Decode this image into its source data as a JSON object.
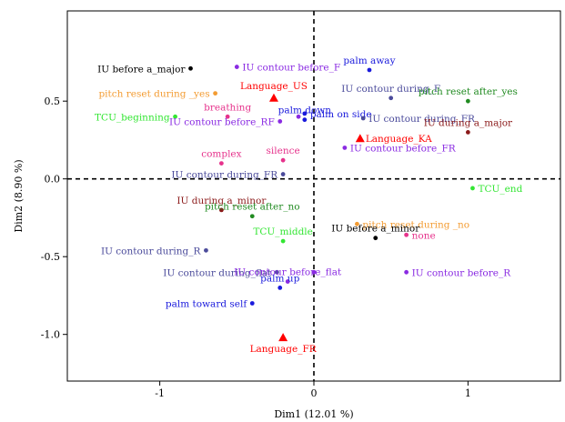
{
  "chart_data": {
    "type": "scatter",
    "xlabel": "Dim1 (12.01 %)",
    "ylabel": "Dim2 (8.90 %)",
    "xlim": [
      -1.6,
      1.6
    ],
    "ylim": [
      -1.3,
      1.08
    ],
    "x_ticks": [
      "-1",
      "0",
      "1"
    ],
    "x_tick_values": [
      -1,
      0,
      1
    ],
    "y_ticks": [
      "-1.0",
      "-0.5",
      "0.0",
      "0.5"
    ],
    "y_tick_values": [
      -1.0,
      -0.5,
      0.0,
      0.5
    ],
    "grid": false,
    "reference_lines": [
      0,
      0
    ],
    "points": [
      {
        "label": "IU before a_major",
        "x": -0.8,
        "y": 0.71,
        "color": "#000000",
        "marker": "dot",
        "anchor": "end"
      },
      {
        "label": "IU contour before_F",
        "x": -0.5,
        "y": 0.72,
        "color": "#8a2be2",
        "marker": "dot",
        "anchor": "start"
      },
      {
        "label": "palm away",
        "x": 0.36,
        "y": 0.7,
        "color": "#1a1adc",
        "marker": "dot",
        "anchor": "middle"
      },
      {
        "label": "pitch reset during _yes",
        "x": -0.64,
        "y": 0.55,
        "color": "#f39c33",
        "marker": "dot",
        "anchor": "end"
      },
      {
        "label": "Language_US",
        "x": -0.26,
        "y": 0.52,
        "color": "#ff0000",
        "marker": "triangle",
        "anchor": "middle"
      },
      {
        "label": "IU contour during_F",
        "x": 0.5,
        "y": 0.52,
        "color": "#4b4b9b",
        "marker": "dot",
        "anchor": "middle"
      },
      {
        "label": "pitch reset after_yes",
        "x": 1.0,
        "y": 0.5,
        "color": "#228b22",
        "marker": "dot",
        "anchor": "middle"
      },
      {
        "label": "TCU_beginning",
        "x": -0.9,
        "y": 0.4,
        "color": "#33e633",
        "marker": "dot",
        "anchor": "end"
      },
      {
        "label": "breathing",
        "x": -0.56,
        "y": 0.4,
        "color": "#e6338c",
        "marker": "dot",
        "anchor": "middle"
      },
      {
        "label": "palm on side",
        "x": -0.06,
        "y": 0.42,
        "color": "#1a1adc",
        "marker": "dot",
        "anchor": "start"
      },
      {
        "label": "",
        "x": -0.1,
        "y": 0.4,
        "color": "#8a2be2",
        "marker": "dot",
        "anchor": "middle"
      },
      {
        "label": "palm down",
        "x": -0.06,
        "y": 0.38,
        "color": "#1a1adc",
        "marker": "dot",
        "anchor": "middle"
      },
      {
        "label": "IU contour during_FR",
        "x": 0.32,
        "y": 0.39,
        "color": "#4b4b9b",
        "marker": "dot",
        "anchor": "start"
      },
      {
        "label": "IU contour before_RF",
        "x": -0.22,
        "y": 0.37,
        "color": "#8a2be2",
        "marker": "dot",
        "anchor": "end"
      },
      {
        "label": "IU during a_major",
        "x": 1.0,
        "y": 0.3,
        "color": "#8b1a1a",
        "marker": "dot",
        "anchor": "middle"
      },
      {
        "label": "Language_KA",
        "x": 0.3,
        "y": 0.26,
        "color": "#ff0000",
        "marker": "triangle",
        "anchor": "start"
      },
      {
        "label": "IU contour before_FR",
        "x": 0.2,
        "y": 0.2,
        "color": "#8a2be2",
        "marker": "dot",
        "anchor": "start"
      },
      {
        "label": "complex",
        "x": -0.6,
        "y": 0.1,
        "color": "#e6338c",
        "marker": "dot",
        "anchor": "middle"
      },
      {
        "label": "silence",
        "x": -0.2,
        "y": 0.12,
        "color": "#e6338c",
        "marker": "dot",
        "anchor": "middle"
      },
      {
        "label": "IU contour during_FR",
        "x": -0.2,
        "y": 0.03,
        "color": "#4b4b9b",
        "marker": "dot",
        "anchor": "end"
      },
      {
        "label": "TCU_end",
        "x": 1.03,
        "y": -0.06,
        "color": "#33e633",
        "marker": "dot",
        "anchor": "start"
      },
      {
        "label": "IU during a_minor",
        "x": -0.6,
        "y": -0.2,
        "color": "#8b1a1a",
        "marker": "dot",
        "anchor": "middle"
      },
      {
        "label": "pitch reset after_no",
        "x": -0.4,
        "y": -0.24,
        "color": "#228b22",
        "marker": "dot",
        "anchor": "middle"
      },
      {
        "label": "pitch reset during _no",
        "x": 0.28,
        "y": -0.29,
        "color": "#f39c33",
        "marker": "dot",
        "anchor": "start"
      },
      {
        "label": "none",
        "x": 0.6,
        "y": -0.36,
        "color": "#e6338c",
        "marker": "dot",
        "anchor": "start"
      },
      {
        "label": "TCU_middle",
        "x": -0.2,
        "y": -0.4,
        "color": "#33e633",
        "marker": "dot",
        "anchor": "middle"
      },
      {
        "label": "IU before a_minor",
        "x": 0.4,
        "y": -0.38,
        "color": "#000000",
        "marker": "dot",
        "anchor": "middle"
      },
      {
        "label": "IU contour during_R",
        "x": -0.7,
        "y": -0.46,
        "color": "#4b4b9b",
        "marker": "dot",
        "anchor": "end"
      },
      {
        "label": "IU contour during_flat",
        "x": -0.24,
        "y": -0.6,
        "color": "#4b4b9b",
        "marker": "dot",
        "anchor": "end"
      },
      {
        "label": "",
        "x": 0.0,
        "y": -0.6,
        "color": "#8a2be2",
        "marker": "dot",
        "anchor": "middle"
      },
      {
        "label": "IU contour before_flat",
        "x": -0.17,
        "y": -0.66,
        "color": "#8a2be2",
        "marker": "dot",
        "anchor": "middle"
      },
      {
        "label": "IU contour before_R",
        "x": 0.6,
        "y": -0.6,
        "color": "#8a2be2",
        "marker": "dot",
        "anchor": "start"
      },
      {
        "label": "palm up",
        "x": -0.22,
        "y": -0.7,
        "color": "#1a1adc",
        "marker": "dot",
        "anchor": "middle"
      },
      {
        "label": "palm toward self",
        "x": -0.4,
        "y": -0.8,
        "color": "#1a1adc",
        "marker": "dot",
        "anchor": "end"
      },
      {
        "label": "Language_FR",
        "x": -0.2,
        "y": -1.02,
        "color": "#ff0000",
        "marker": "triangle",
        "anchor": "middle"
      }
    ]
  }
}
